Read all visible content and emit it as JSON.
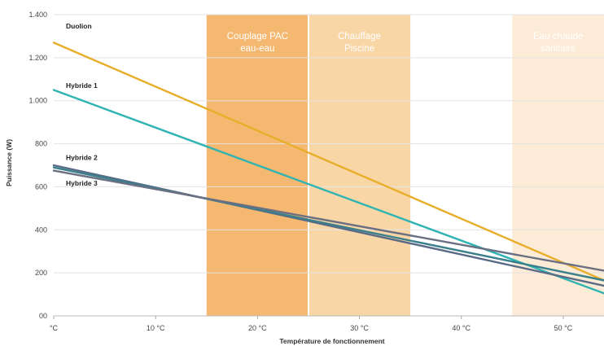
{
  "chart_data": {
    "type": "line",
    "title": "",
    "xlabel": "Température de fonctionnement",
    "ylabel": "Puissance (W)",
    "xlim": [
      0,
      54
    ],
    "ylim": [
      0,
      1400
    ],
    "x_ticks": [
      {
        "value": 0,
        "label": "°C"
      },
      {
        "value": 10,
        "label": "10 °C"
      },
      {
        "value": 20,
        "label": "20 °C"
      },
      {
        "value": 30,
        "label": "30 °C"
      },
      {
        "value": 40,
        "label": "40 °C"
      },
      {
        "value": 50,
        "label": "50 °C"
      }
    ],
    "y_ticks": [
      {
        "value": 0,
        "label": "00"
      },
      {
        "value": 200,
        "label": "200"
      },
      {
        "value": 400,
        "label": "400"
      },
      {
        "value": 600,
        "label": "600"
      },
      {
        "value": 800,
        "label": "800"
      },
      {
        "value": 1000,
        "label": "1.000"
      },
      {
        "value": 1200,
        "label": "1.200"
      },
      {
        "value": 1400,
        "label": "1.400"
      }
    ],
    "grid": true,
    "zones": [
      {
        "label_lines": [
          "Couplage PAC",
          "eau-eau"
        ],
        "from": 15,
        "to": 25,
        "color": "#f5b870"
      },
      {
        "label_lines": [
          "Chauffage",
          "Piscine"
        ],
        "from": 25,
        "to": 35,
        "color": "#f9d6a6"
      },
      {
        "label_lines": [
          "Eau chaude",
          "sanitaire"
        ],
        "from": 45,
        "to": 54,
        "color": "#fcebd6"
      }
    ],
    "series": [
      {
        "name": "Duolion",
        "color": "#e8ae2a",
        "x": [
          0,
          54
        ],
        "y": [
          1270,
          165
        ],
        "label_x": 1.2,
        "label_y": 1335
      },
      {
        "name": "Hybride 1",
        "color": "#2fb3b3",
        "x": [
          0,
          54
        ],
        "y": [
          1050,
          105
        ],
        "label_x": 1.2,
        "label_y": 1060
      },
      {
        "name": "Hybride 2",
        "color": "#596a86",
        "x": [
          0,
          54
        ],
        "y": [
          700,
          140
        ],
        "label_x": 1.2,
        "label_y": 725
      },
      {
        "name": "",
        "color": "#3a7f8c",
        "x": [
          0,
          54
        ],
        "y": [
          690,
          165
        ],
        "label_x": null,
        "label_y": null
      },
      {
        "name": "Hybride 3",
        "color": "#6b6f82",
        "x": [
          0,
          54
        ],
        "y": [
          675,
          210
        ],
        "label_x": 1.2,
        "label_y": 605
      }
    ]
  }
}
